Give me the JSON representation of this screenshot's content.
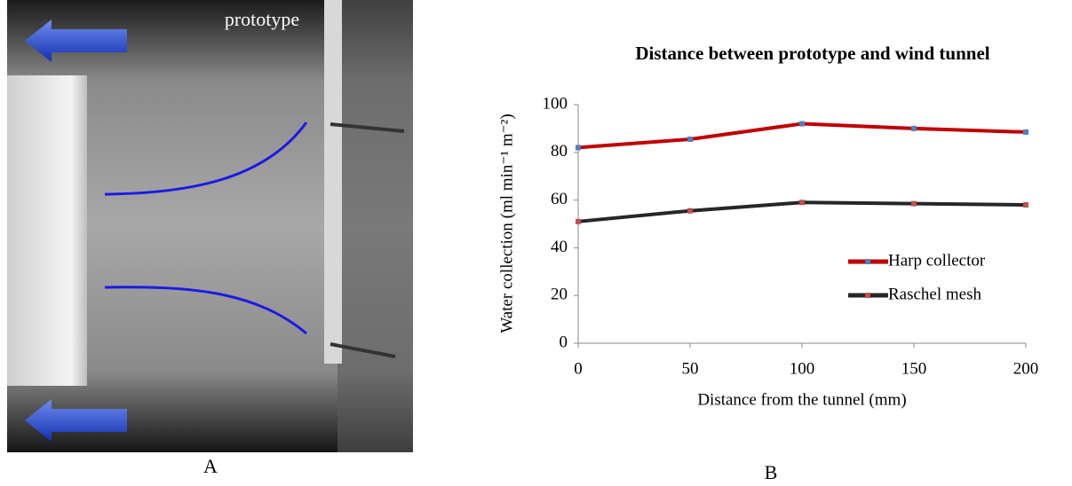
{
  "panel_a": {
    "annotation": "prototype",
    "panel_label": "A"
  },
  "chart_data": {
    "type": "line",
    "title": "Distance between prototype and wind tunnel",
    "x_label": "Distance from the tunnel (mm)",
    "y_label": "Water collection (ml min⁻¹ m⁻²)",
    "x": [
      0,
      50,
      100,
      150,
      200
    ],
    "series": [
      {
        "name": "Harp collector",
        "color": "#c00000",
        "marker_color": "#4f81bd",
        "values": [
          82,
          85.5,
          92,
          90,
          88.5
        ]
      },
      {
        "name": "Raschel mesh",
        "color": "#262626",
        "marker_color": "#c0504d",
        "values": [
          51,
          55.5,
          59,
          58.5,
          58
        ]
      }
    ],
    "xlim": [
      0,
      200
    ],
    "xticks": [
      0,
      50,
      100,
      150,
      200
    ],
    "ylim": [
      0,
      100
    ],
    "yticks": [
      0,
      20,
      40,
      60,
      80,
      100
    ],
    "legend": "right",
    "panel_label": "B"
  }
}
